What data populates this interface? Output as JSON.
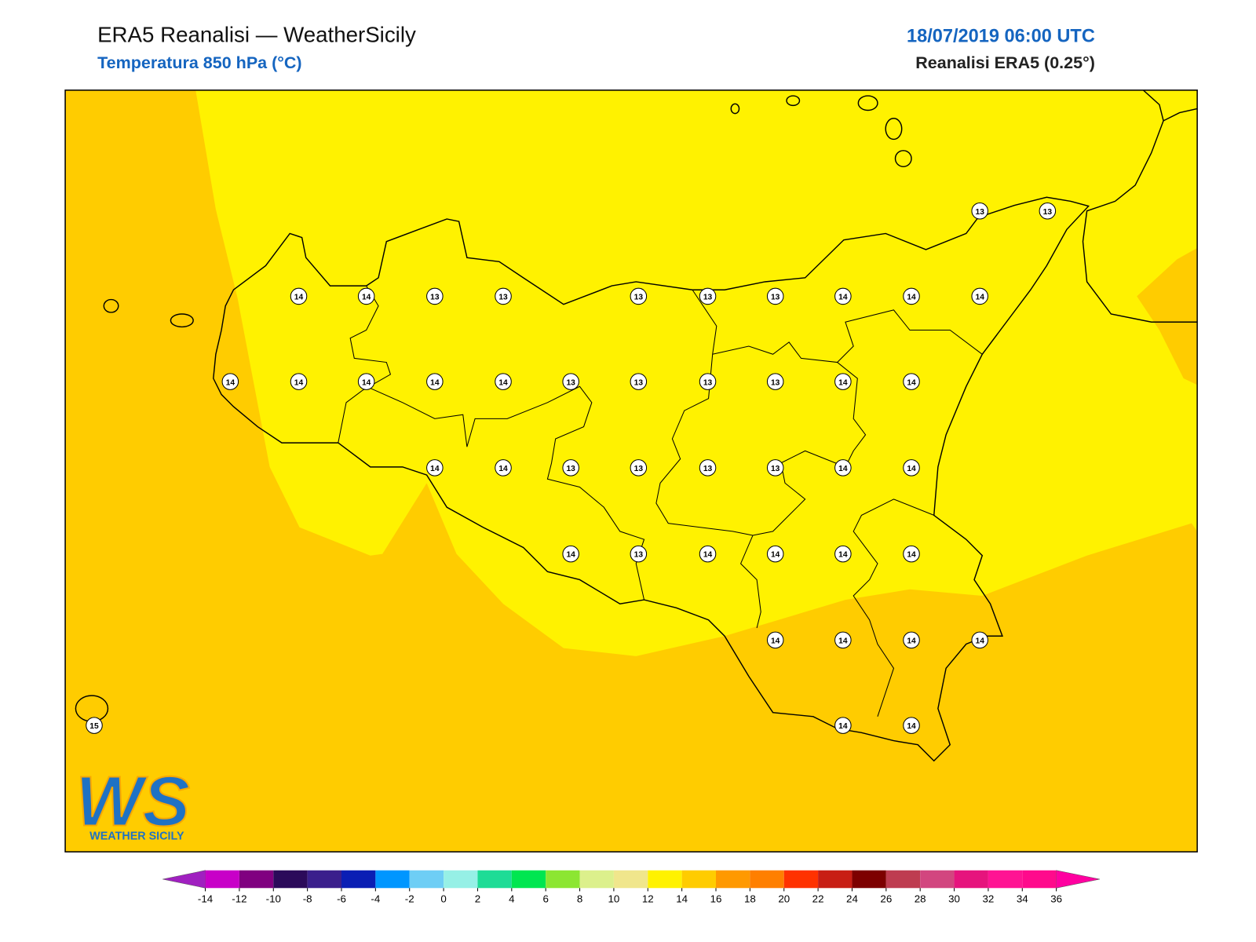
{
  "header": {
    "title": "ERA5 Reanalisi — WeatherSicily",
    "subtitle": "Temperatura 850 hPa (°C)",
    "date": "18/07/2019 06:00 UTC",
    "source": "Reanalisi ERA5 (0.25°)"
  },
  "stations": [
    14,
    14,
    13,
    13,
    13,
    13,
    13,
    14,
    14,
    14,
    13,
    13,
    14,
    14,
    14,
    14,
    14,
    13,
    13,
    13,
    13,
    14,
    14,
    14,
    14,
    13,
    13,
    13,
    13,
    14,
    14,
    14,
    13,
    14,
    14,
    14,
    14,
    14,
    14,
    14,
    14,
    14,
    14,
    15
  ],
  "logo": {
    "mark": "WS",
    "name": "WEATHER SICILY"
  },
  "colorbar": {
    "ticks": [
      -14,
      -12,
      -10,
      -8,
      -6,
      -4,
      -2,
      0,
      2,
      4,
      6,
      8,
      10,
      12,
      14,
      16,
      18,
      20,
      22,
      24,
      26,
      28,
      30,
      32,
      34,
      36
    ],
    "colors": [
      "#c800c8",
      "#800080",
      "#2b0a5a",
      "#3a1f8c",
      "#0a1eb4",
      "#0096ff",
      "#6ecef5",
      "#96f0e6",
      "#1edc96",
      "#00e650",
      "#8ce632",
      "#dcf08c",
      "#f0e68c",
      "#fff200",
      "#ffcc00",
      "#ff9900",
      "#ff7f00",
      "#ff3200",
      "#c81e14",
      "#7d0000",
      "#be3c50",
      "#d2467f",
      "#e6147d",
      "#ff1493",
      "#ff0a8c"
    ],
    "under": "#a020c0",
    "over": "#ff00a0"
  }
}
